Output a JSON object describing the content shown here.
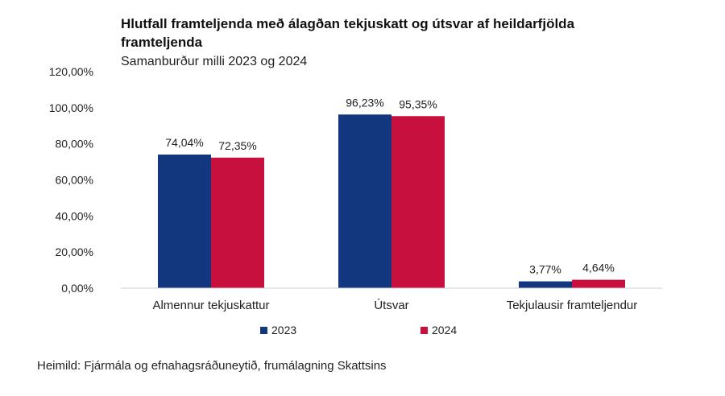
{
  "title": "Hlutfall framteljenda með álagðan tekjuskatt og útsvar af heildarfjölda framteljenda",
  "subtitle": "Samanburður milli 2023 og 2024",
  "source": "Heimild: Fjármála og efnahagsráðuneytið, frumálagning Skattsins",
  "colors": {
    "2023": "#12377f",
    "2024": "#c8103e"
  },
  "chart_data": {
    "type": "bar",
    "title": "Hlutfall framteljenda með álagðan tekjuskatt og útsvar af heildarfjölda framteljenda",
    "subtitle": "Samanburður milli 2023 og 2024",
    "categories": [
      "Almennur tekjuskattur",
      "Útsvar",
      "Tekjulausir framteljendur"
    ],
    "series": [
      {
        "name": "2023",
        "values": [
          74.04,
          96.23,
          3.77
        ],
        "labels": [
          "74,04%",
          "96,23%",
          "3,77%"
        ],
        "color": "#12377f"
      },
      {
        "name": "2024",
        "values": [
          72.35,
          95.35,
          4.64
        ],
        "labels": [
          "72,35%",
          "95,35%",
          "4,64%"
        ],
        "color": "#c8103e"
      }
    ],
    "ylim": [
      0,
      120
    ],
    "yticks": [
      0,
      20,
      40,
      60,
      80,
      100,
      120
    ],
    "ytick_labels": [
      "0,00%",
      "20,00%",
      "40,00%",
      "60,00%",
      "80,00%",
      "100,00%",
      "120,00%"
    ],
    "grid": false,
    "legend": "bottom"
  }
}
